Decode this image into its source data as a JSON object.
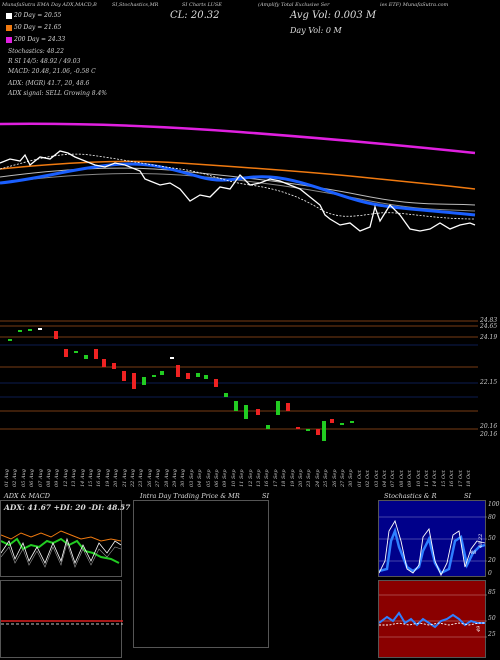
{
  "header": {
    "col1": "MunafaSutra EMA Day ADX,MACD,B",
    "col2": "SI,Stochastics,MR",
    "col3": "SI Charts LUSE",
    "col4": "(Amplify Total Exclusive Ser",
    "col5": "ies ETF) MunafaSutra.com"
  },
  "price_info": {
    "cl": "CL: 20.32",
    "avg_vol": "Avg Vol: 0.003  M",
    "day_vol": "Day Vol: 0   M"
  },
  "legend": [
    {
      "label": "20  Day = 20.55",
      "color": "#ffffff"
    },
    {
      "label": "50  Day = 21.65",
      "color": "#f07a10"
    },
    {
      "label": "200  Day = 24.33",
      "color": "#e020e0"
    }
  ],
  "stats": {
    "stoch": "Stochastics: 48.22",
    "rsi": "R        SI 14/5: 48.92 / 49.03",
    "macd": "MACD: 20.48,  21.06,  -0.58  C",
    "adx": "ADX:                   (MGR) 41.7,  20,  48.6",
    "adx_signal": "ADX  signal: SELL  Growing 8.4%"
  },
  "price_axis": {
    "labels": [
      "24.83",
      "24.65",
      "24.19",
      "22.15",
      "20.16",
      "20.16"
    ]
  },
  "candles_chart": {
    "dates": [
      "01 Aug",
      "02 Aug",
      "05 Aug",
      "06 Aug",
      "07 Aug",
      "08 Aug",
      "09 Aug",
      "12 Aug",
      "13 Aug",
      "14 Aug",
      "15 Aug",
      "16 Aug",
      "19 Aug",
      "20 Aug",
      "21 Aug",
      "22 Aug",
      "23 Aug",
      "26 Aug",
      "27 Aug",
      "28 Aug",
      "29 Aug",
      "30 Aug",
      "03 Sep",
      "04 Sep",
      "05 Sep",
      "06 Sep",
      "09 Sep",
      "10 Sep",
      "11 Sep",
      "12 Sep",
      "13 Sep",
      "16 Sep",
      "17 Sep",
      "18 Sep",
      "19 Sep",
      "20 Sep",
      "23 Sep",
      "24 Sep",
      "25 Sep",
      "26 Sep",
      "27 Sep",
      "30 Sep",
      "01 Oct",
      "02 Oct",
      "03 Oct",
      "04 Oct",
      "07 Oct",
      "08 Oct",
      "09 Oct",
      "10 Oct",
      "11 Oct",
      "14 Oct",
      "15 Oct",
      "16 Oct",
      "17 Oct",
      "18 Oct"
    ]
  },
  "panels": {
    "adx_title": "ADX  & MACD",
    "adx_values": "ADX: 41.67 +DI: 20 -DI: 48.57",
    "intra_title": "Intra  Day Trading Price  & MR",
    "intra_si": "SI",
    "stoch_title": "Stochastics & R",
    "stoch_si": "SI",
    "stoch_axis": [
      "100",
      "80",
      "50",
      "20",
      "0"
    ],
    "stoch_labels": [
      "48.22",
      "48"
    ],
    "rsi_axis": [
      "85",
      "50",
      "25"
    ],
    "rsi_labels": [
      "49"
    ]
  },
  "colors": {
    "bg": "#000000",
    "ema20": "#ffffff",
    "ema50": "#f07a10",
    "ema200": "#e020e0",
    "ema_blue": "#1a5fff",
    "up": "#22cc22",
    "down": "#ee2222",
    "grid": "#a0521a"
  }
}
